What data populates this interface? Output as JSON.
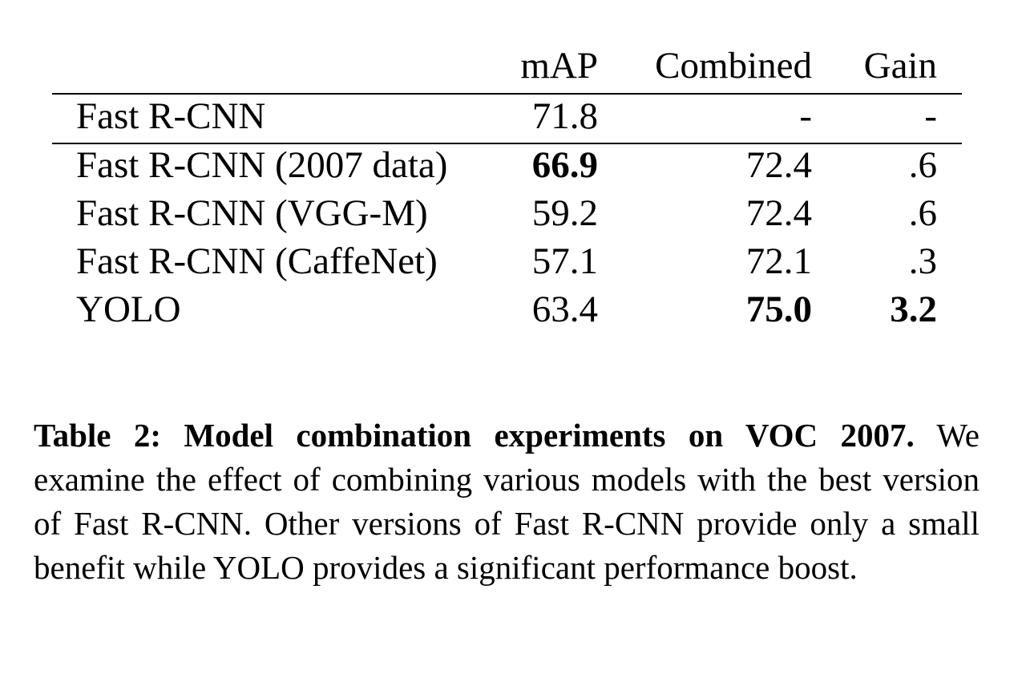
{
  "table": {
    "headers": {
      "map": "mAP",
      "combined": "Combined",
      "gain": "Gain"
    },
    "baseline_row": {
      "model": "Fast R-CNN",
      "map": "71.8",
      "combined": "-",
      "gain": "-"
    },
    "rows": [
      {
        "model": "Fast R-CNN (2007 data)",
        "map": "66.9",
        "combined": "72.4",
        "gain": ".6",
        "bold_map": true,
        "bold_combined": false,
        "bold_gain": false
      },
      {
        "model": "Fast R-CNN (VGG-M)",
        "map": "59.2",
        "combined": "72.4",
        "gain": ".6",
        "bold_map": false,
        "bold_combined": false,
        "bold_gain": false
      },
      {
        "model": "Fast R-CNN (CaffeNet)",
        "map": "57.1",
        "combined": "72.1",
        "gain": ".3",
        "bold_map": false,
        "bold_combined": false,
        "bold_gain": false
      },
      {
        "model": "YOLO",
        "map": "63.4",
        "combined": "75.0",
        "gain": "3.2",
        "bold_map": false,
        "bold_combined": true,
        "bold_gain": true
      }
    ]
  },
  "caption": {
    "label": "Table 2:",
    "title": "Model combination experiments on VOC 2007.",
    "body": "We examine the effect of combining various models with the best version of Fast R-CNN. Other versions of Fast R-CNN provide only a small benefit while YOLO provides a significant performance boost."
  }
}
